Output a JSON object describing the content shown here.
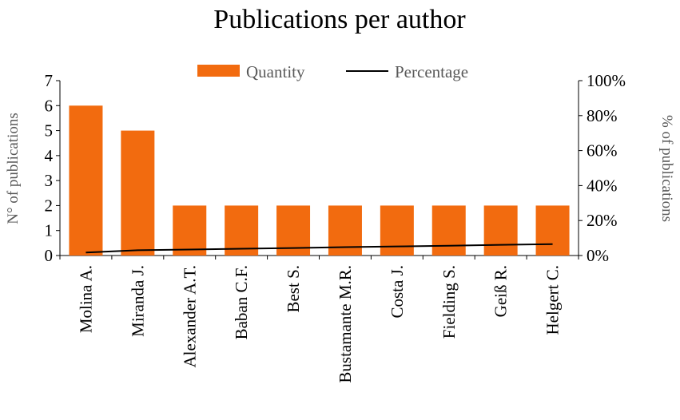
{
  "chart_data": {
    "type": "bar",
    "title": "Publications per author",
    "categories": [
      "Molina A.",
      "Miranda J.",
      "Alexander A.T.",
      "Baban C.F.",
      "Best S.",
      "Bustamante M.R.",
      "Costa J.",
      "Fielding S.",
      "Geiß R.",
      "Helgert C."
    ],
    "series": [
      {
        "name": "Quantity",
        "type": "bar",
        "axis": "left",
        "color": "#F26B0F",
        "values": [
          6,
          5,
          2,
          2,
          2,
          2,
          2,
          2,
          2,
          2
        ]
      },
      {
        "name": "Percentage",
        "type": "line",
        "axis": "right",
        "color": "#000000",
        "values": [
          1.7,
          3.0,
          3.4,
          3.9,
          4.3,
          4.8,
          5.2,
          5.6,
          6.1,
          6.5
        ]
      }
    ],
    "ylabel": "N° of publications",
    "y2label": "% of publications",
    "ylim": [
      0,
      7
    ],
    "y2lim": [
      0,
      100
    ],
    "yticks": [
      "0",
      "1",
      "2",
      "3",
      "4",
      "5",
      "6",
      "7"
    ],
    "y2ticks": [
      "0%",
      "20%",
      "40%",
      "60%",
      "80%",
      "100%"
    ],
    "legend_position": "top-center",
    "grid": false
  }
}
